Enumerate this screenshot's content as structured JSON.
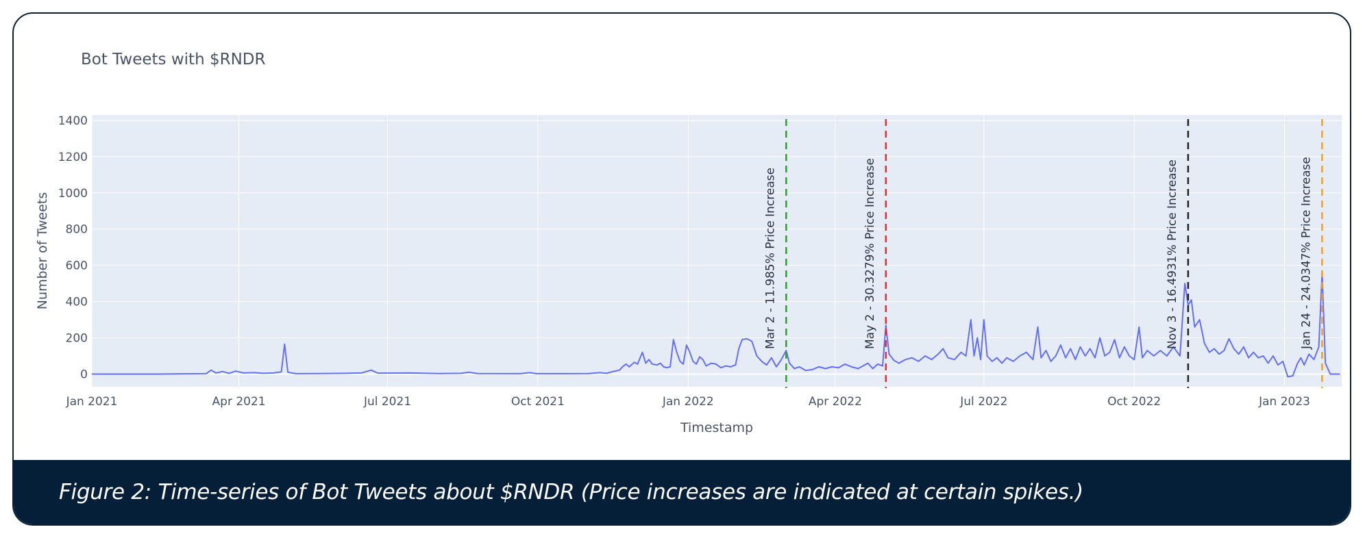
{
  "caption": "Figure 2: Time-series of Bot Tweets about $RNDR (Price increases are indicated at certain spikes.)",
  "chart_data": {
    "type": "line",
    "title": "Bot Tweets with $RNDR",
    "xlabel": "Timestamp",
    "ylabel": "Number of Tweets",
    "x_range": [
      "2021-01-01",
      "2023-02-05"
    ],
    "ylim": [
      -70,
      1430
    ],
    "yticks": [
      0,
      200,
      400,
      600,
      800,
      1000,
      1200,
      1400
    ],
    "xticks": [
      {
        "date": "2021-01-01",
        "label": "Jan 2021"
      },
      {
        "date": "2021-04-01",
        "label": "Apr 2021"
      },
      {
        "date": "2021-07-01",
        "label": "Jul 2021"
      },
      {
        "date": "2021-10-01",
        "label": "Oct 2021"
      },
      {
        "date": "2022-01-01",
        "label": "Jan 2022"
      },
      {
        "date": "2022-04-01",
        "label": "Apr 2022"
      },
      {
        "date": "2022-07-01",
        "label": "Jul 2022"
      },
      {
        "date": "2022-10-01",
        "label": "Oct 2022"
      },
      {
        "date": "2023-01-01",
        "label": "Jan 2023"
      }
    ],
    "colors": {
      "line": "#636efa",
      "plot_bg": "#e5ecf6",
      "grid": "#ffffff",
      "text": "#4a5366"
    },
    "series": [
      {
        "name": "Bot Tweets",
        "points": [
          [
            "2021-01-01",
            0
          ],
          [
            "2021-02-10",
            0
          ],
          [
            "2021-03-12",
            2
          ],
          [
            "2021-03-15",
            22
          ],
          [
            "2021-03-18",
            6
          ],
          [
            "2021-03-22",
            14
          ],
          [
            "2021-03-26",
            4
          ],
          [
            "2021-03-30",
            16
          ],
          [
            "2021-04-04",
            6
          ],
          [
            "2021-04-10",
            8
          ],
          [
            "2021-04-16",
            4
          ],
          [
            "2021-04-22",
            6
          ],
          [
            "2021-04-27",
            12
          ],
          [
            "2021-04-29",
            165
          ],
          [
            "2021-05-01",
            10
          ],
          [
            "2021-05-06",
            2
          ],
          [
            "2021-05-20",
            3
          ],
          [
            "2021-06-05",
            4
          ],
          [
            "2021-06-15",
            6
          ],
          [
            "2021-06-21",
            22
          ],
          [
            "2021-06-25",
            5
          ],
          [
            "2021-07-15",
            6
          ],
          [
            "2021-08-01",
            3
          ],
          [
            "2021-08-15",
            4
          ],
          [
            "2021-08-20",
            10
          ],
          [
            "2021-08-25",
            3
          ],
          [
            "2021-09-20",
            2
          ],
          [
            "2021-09-26",
            8
          ],
          [
            "2021-09-30",
            2
          ],
          [
            "2021-10-20",
            2
          ],
          [
            "2021-11-01",
            3
          ],
          [
            "2021-11-08",
            8
          ],
          [
            "2021-11-12",
            4
          ],
          [
            "2021-11-16",
            14
          ],
          [
            "2021-11-20",
            22
          ],
          [
            "2021-11-22",
            42
          ],
          [
            "2021-11-24",
            55
          ],
          [
            "2021-11-26",
            40
          ],
          [
            "2021-11-29",
            65
          ],
          [
            "2021-12-01",
            55
          ],
          [
            "2021-12-04",
            120
          ],
          [
            "2021-12-06",
            60
          ],
          [
            "2021-12-08",
            80
          ],
          [
            "2021-12-10",
            55
          ],
          [
            "2021-12-13",
            50
          ],
          [
            "2021-12-15",
            60
          ],
          [
            "2021-12-17",
            40
          ],
          [
            "2021-12-19",
            35
          ],
          [
            "2021-12-21",
            40
          ],
          [
            "2021-12-23",
            190
          ],
          [
            "2021-12-25",
            120
          ],
          [
            "2021-12-27",
            70
          ],
          [
            "2021-12-29",
            55
          ],
          [
            "2021-12-31",
            160
          ],
          [
            "2022-01-02",
            120
          ],
          [
            "2022-01-04",
            70
          ],
          [
            "2022-01-06",
            55
          ],
          [
            "2022-01-08",
            95
          ],
          [
            "2022-01-10",
            80
          ],
          [
            "2022-01-12",
            45
          ],
          [
            "2022-01-15",
            60
          ],
          [
            "2022-01-18",
            55
          ],
          [
            "2022-01-21",
            35
          ],
          [
            "2022-01-24",
            45
          ],
          [
            "2022-01-27",
            40
          ],
          [
            "2022-01-30",
            50
          ],
          [
            "2022-02-01",
            140
          ],
          [
            "2022-02-03",
            190
          ],
          [
            "2022-02-06",
            195
          ],
          [
            "2022-02-09",
            180
          ],
          [
            "2022-02-12",
            100
          ],
          [
            "2022-02-15",
            70
          ],
          [
            "2022-02-18",
            50
          ],
          [
            "2022-02-21",
            90
          ],
          [
            "2022-02-24",
            40
          ],
          [
            "2022-02-27",
            80
          ],
          [
            "2022-03-02",
            130
          ],
          [
            "2022-03-04",
            60
          ],
          [
            "2022-03-07",
            30
          ],
          [
            "2022-03-10",
            40
          ],
          [
            "2022-03-14",
            20
          ],
          [
            "2022-03-18",
            25
          ],
          [
            "2022-03-22",
            40
          ],
          [
            "2022-03-26",
            30
          ],
          [
            "2022-03-30",
            40
          ],
          [
            "2022-04-03",
            35
          ],
          [
            "2022-04-07",
            55
          ],
          [
            "2022-04-11",
            40
          ],
          [
            "2022-04-15",
            30
          ],
          [
            "2022-04-18",
            45
          ],
          [
            "2022-04-21",
            60
          ],
          [
            "2022-04-24",
            30
          ],
          [
            "2022-04-27",
            55
          ],
          [
            "2022-04-30",
            45
          ],
          [
            "2022-05-02",
            270
          ],
          [
            "2022-05-04",
            110
          ],
          [
            "2022-05-07",
            75
          ],
          [
            "2022-05-10",
            60
          ],
          [
            "2022-05-14",
            80
          ],
          [
            "2022-05-18",
            90
          ],
          [
            "2022-05-22",
            70
          ],
          [
            "2022-05-26",
            100
          ],
          [
            "2022-05-30",
            80
          ],
          [
            "2022-06-03",
            110
          ],
          [
            "2022-06-06",
            140
          ],
          [
            "2022-06-09",
            90
          ],
          [
            "2022-06-13",
            80
          ],
          [
            "2022-06-17",
            120
          ],
          [
            "2022-06-20",
            100
          ],
          [
            "2022-06-23",
            300
          ],
          [
            "2022-06-25",
            100
          ],
          [
            "2022-06-27",
            200
          ],
          [
            "2022-06-29",
            80
          ],
          [
            "2022-07-01",
            300
          ],
          [
            "2022-07-03",
            100
          ],
          [
            "2022-07-06",
            70
          ],
          [
            "2022-07-09",
            90
          ],
          [
            "2022-07-12",
            60
          ],
          [
            "2022-07-15",
            90
          ],
          [
            "2022-07-19",
            70
          ],
          [
            "2022-07-23",
            100
          ],
          [
            "2022-07-27",
            120
          ],
          [
            "2022-07-31",
            80
          ],
          [
            "2022-08-03",
            260
          ],
          [
            "2022-08-05",
            90
          ],
          [
            "2022-08-08",
            130
          ],
          [
            "2022-08-11",
            70
          ],
          [
            "2022-08-14",
            100
          ],
          [
            "2022-08-17",
            160
          ],
          [
            "2022-08-20",
            90
          ],
          [
            "2022-08-23",
            140
          ],
          [
            "2022-08-26",
            80
          ],
          [
            "2022-08-29",
            150
          ],
          [
            "2022-09-01",
            100
          ],
          [
            "2022-09-04",
            140
          ],
          [
            "2022-09-07",
            90
          ],
          [
            "2022-09-10",
            200
          ],
          [
            "2022-09-13",
            100
          ],
          [
            "2022-09-16",
            120
          ],
          [
            "2022-09-19",
            190
          ],
          [
            "2022-09-22",
            90
          ],
          [
            "2022-09-25",
            150
          ],
          [
            "2022-09-28",
            100
          ],
          [
            "2022-10-01",
            80
          ],
          [
            "2022-10-04",
            260
          ],
          [
            "2022-10-06",
            90
          ],
          [
            "2022-10-09",
            130
          ],
          [
            "2022-10-13",
            100
          ],
          [
            "2022-10-17",
            130
          ],
          [
            "2022-10-21",
            100
          ],
          [
            "2022-10-25",
            150
          ],
          [
            "2022-10-29",
            100
          ],
          [
            "2022-11-01",
            500
          ],
          [
            "2022-11-03",
            380
          ],
          [
            "2022-11-05",
            410
          ],
          [
            "2022-11-07",
            260
          ],
          [
            "2022-11-10",
            300
          ],
          [
            "2022-11-13",
            170
          ],
          [
            "2022-11-16",
            120
          ],
          [
            "2022-11-19",
            140
          ],
          [
            "2022-11-22",
            110
          ],
          [
            "2022-11-25",
            130
          ],
          [
            "2022-11-28",
            195
          ],
          [
            "2022-12-01",
            140
          ],
          [
            "2022-12-04",
            110
          ],
          [
            "2022-12-07",
            150
          ],
          [
            "2022-12-10",
            90
          ],
          [
            "2022-12-13",
            120
          ],
          [
            "2022-12-16",
            90
          ],
          [
            "2022-12-19",
            100
          ],
          [
            "2022-12-22",
            60
          ],
          [
            "2022-12-25",
            100
          ],
          [
            "2022-12-28",
            50
          ],
          [
            "2022-12-31",
            70
          ],
          [
            "2023-01-03",
            -15
          ],
          [
            "2023-01-06",
            -10
          ],
          [
            "2023-01-09",
            60
          ],
          [
            "2023-01-11",
            90
          ],
          [
            "2023-01-13",
            50
          ],
          [
            "2023-01-16",
            110
          ],
          [
            "2023-01-19",
            80
          ],
          [
            "2023-01-22",
            150
          ],
          [
            "2023-01-24",
            560
          ],
          [
            "2023-01-26",
            60
          ],
          [
            "2023-01-29",
            0
          ],
          [
            "2023-02-04",
            0
          ]
        ]
      }
    ],
    "annotations": [
      {
        "date": "2022-03-02",
        "label": "Mar 2 - 11.985% Price Increase",
        "color": "#2ca02c"
      },
      {
        "date": "2022-05-02",
        "label": "May 2 - 30.3279% Price Increase",
        "color": "#e62e2e"
      },
      {
        "date": "2022-11-03",
        "label": "Nov 3 - 16.4931% Price Increase",
        "color": "#222222"
      },
      {
        "date": "2023-01-24",
        "label": "Jan 24 - 24.0347% Price Increase",
        "color": "#f0a020"
      }
    ]
  }
}
